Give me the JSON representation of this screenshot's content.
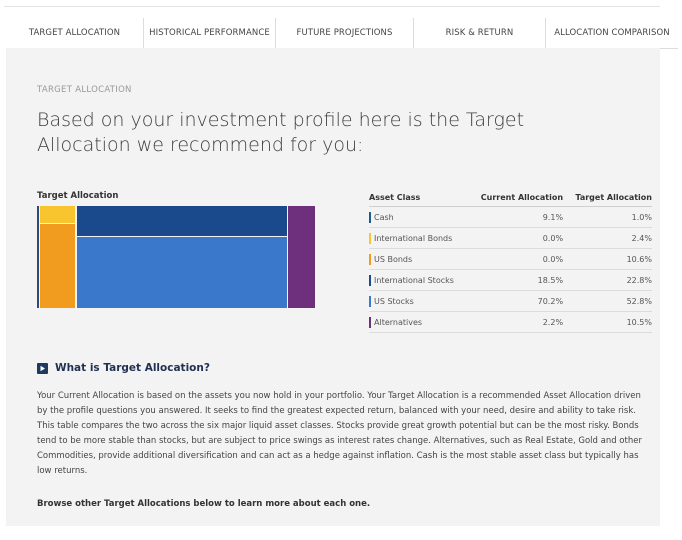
{
  "tabs": [
    {
      "label": "TARGET ALLOCATION",
      "active": true
    },
    {
      "label": "HISTORICAL PERFORMANCE",
      "active": false
    },
    {
      "label": "FUTURE PROJECTIONS",
      "active": false
    },
    {
      "label": "RISK & RETURN",
      "active": false
    },
    {
      "label": "ALLOCATION COMPARISON",
      "active": false
    }
  ],
  "section": {
    "eyebrow": "TARGET ALLOCATION",
    "headline": "Based on your investment profile here is the Target Allocation we recommend for you:"
  },
  "chart": {
    "title": "Target Allocation",
    "note_values": "Block chart comparing Current (outer) and Target (inner) allocation by asset class"
  },
  "table": {
    "headers": [
      "Asset Class",
      "Current Allocation",
      "Target Allocation"
    ],
    "rows": [
      {
        "asset": "Cash",
        "current": "9.1%",
        "target": "1.0%",
        "color": "#1f5b8a"
      },
      {
        "asset": "International Bonds",
        "current": "0.0%",
        "target": "2.4%",
        "color": "#f8c52f"
      },
      {
        "asset": "US Bonds",
        "current": "0.0%",
        "target": "10.6%",
        "color": "#f29c1f"
      },
      {
        "asset": "International Stocks",
        "current": "18.5%",
        "target": "22.8%",
        "color": "#1b4a8c"
      },
      {
        "asset": "US Stocks",
        "current": "70.2%",
        "target": "52.8%",
        "color": "#3a78cc"
      },
      {
        "asset": "Alternatives",
        "current": "2.2%",
        "target": "10.5%",
        "color": "#6e2f7c"
      }
    ]
  },
  "info": {
    "title": "What is Target Allocation?",
    "body": "Your Current Allocation is based on the assets you now hold in your portfolio. Your Target Allocation is a recommended Asset Allocation driven by the profile questions you answered. It seeks to find the greatest expected return, balanced with your need, desire and ability to take risk. This table compares the two across the six major liquid asset classes. Stocks provide great growth potential but can be the most risky. Bonds tend to be more stable than stocks, but are subject to price swings as interest rates change. Alternatives, such as Real Estate, Gold and other Commodities, provide additional diversification and can act as a hedge against inflation. Cash is the most stable asset class but typically has low returns.",
    "browse": "Browse other Target Allocations below to learn more about each one."
  },
  "colors": {
    "cash": "#1f5b8a",
    "international_bonds": "#f8c52f",
    "us_bonds": "#f29c1f",
    "international_stocks": "#1b4a8c",
    "us_stocks": "#3a78cc",
    "alternatives": "#6e2f7c"
  }
}
